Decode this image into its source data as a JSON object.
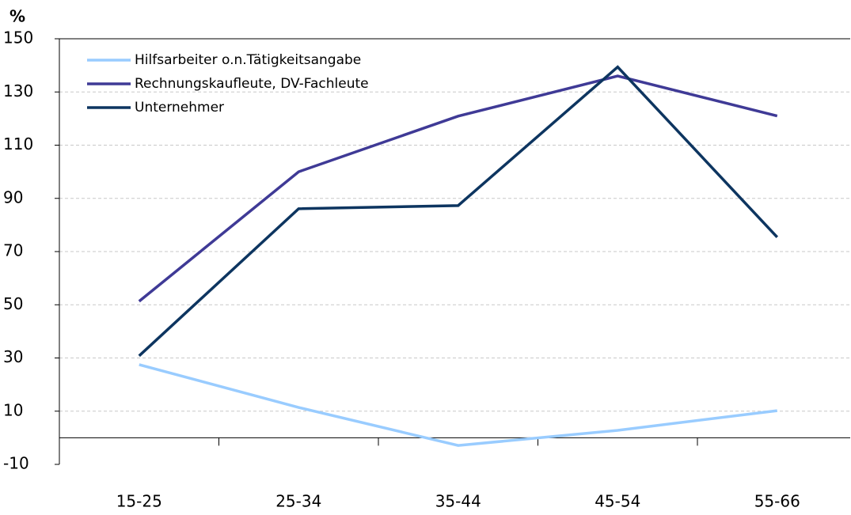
{
  "chart_data": {
    "type": "line",
    "y_label": "%",
    "categories": [
      "15-25",
      "25-34",
      "35-44",
      "45-54",
      "55-66"
    ],
    "series": [
      {
        "name": "Hilfsarbeiter o.n.Tätigkeitsangabe",
        "color": "#99ccff",
        "values": [
          27.5,
          11.4,
          -2.9,
          2.8,
          10.2
        ]
      },
      {
        "name": "Rechnungskaufleute, DV-Fachleute",
        "color": "#3f3a96",
        "values": [
          51.3,
          100,
          120.9,
          136,
          121
        ]
      },
      {
        "name": "Unternehmer",
        "color": "#0d3560",
        "values": [
          30.8,
          86.1,
          87.3,
          139.4,
          75.4
        ]
      }
    ],
    "ylim": [
      -10,
      150
    ],
    "yticks": [
      -10,
      10,
      30,
      50,
      70,
      90,
      110,
      130,
      150
    ],
    "grid": true,
    "legend": "top-left"
  }
}
